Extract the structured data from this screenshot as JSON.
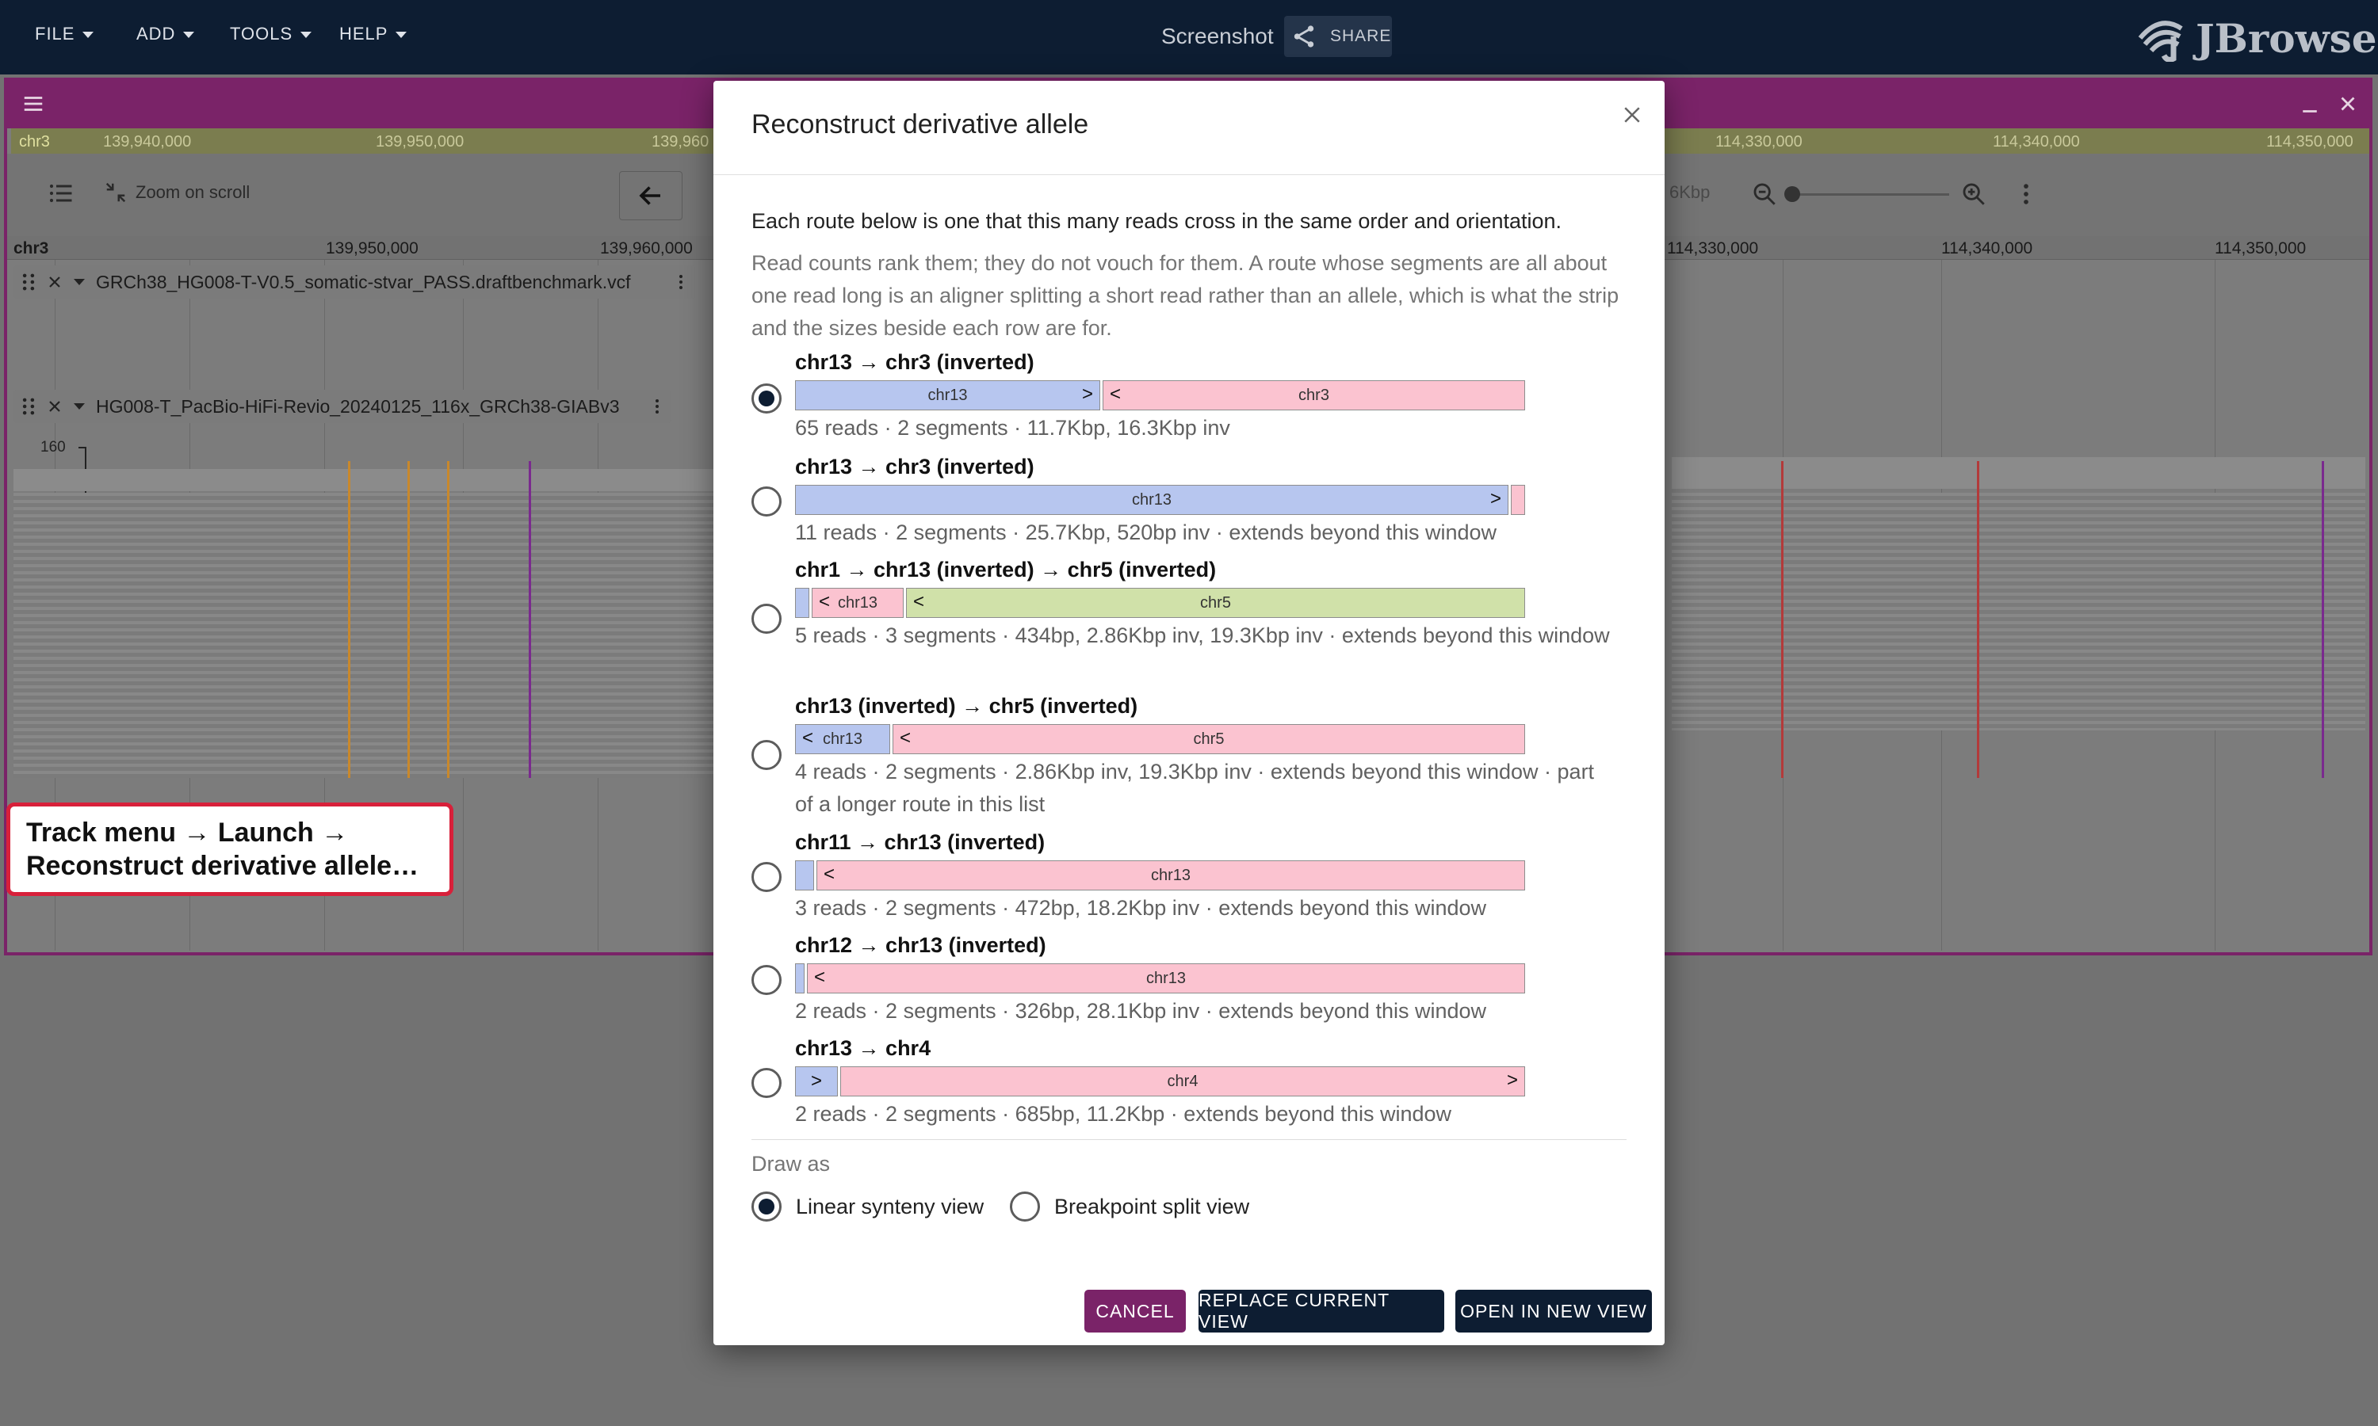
{
  "menu": {
    "file": "FILE",
    "add": "ADD",
    "tools": "TOOLS",
    "help": "HELP"
  },
  "header": {
    "screenshot_label": "Screenshot",
    "share_label": "SHARE",
    "brand": "JBrowse"
  },
  "view": {
    "ruler_ref": "chr3",
    "ruler_ticks_left": [
      "139,940,000",
      "139,950,000",
      "139,960"
    ],
    "ruler_ticks_right": [
      "114,330,000",
      "114,340,000",
      "114,350,000"
    ],
    "zoom_on_scroll": "Zoom on scroll",
    "width_label": "6Kbp",
    "scale_ref": "chr3",
    "scale_ticks_left": [
      "139,950,000",
      "139,960,000"
    ],
    "scale_ticks_right": [
      "114,330,000",
      "114,340,000",
      "114,350,000"
    ],
    "track1_name": "GRCh38_HG008-T-V0.5_somatic-stvar_PASS.draftbenchmark.vcf",
    "track2_name": "HG008-T_PacBio-HiFi-Revio_20240125_116x_GRCh38-GIABv3",
    "coverage_max": "160",
    "coverage_min": "0"
  },
  "callout": {
    "line1": "Track menu → Launch →",
    "line2": "Reconstruct derivative allele…"
  },
  "dialog": {
    "title": "Reconstruct derivative allele",
    "intro_primary": "Each route below is one that this many reads cross in the same order and orientation.",
    "intro_secondary": "Read counts rank them; they do not vouch for them. A route whose segments are all about one read long is an aligner splitting a short read rather than an allele, which is what the strip and the sizes beside each row are for.",
    "routes": [
      {
        "title": "chr13 → chr3 (inverted)",
        "stats": "65 reads · 2 segments · 11.7Kbp, 16.3Kbp inv",
        "selected": true,
        "segments": [
          {
            "label": "chr13",
            "color": "#b7c6ef",
            "arrow_right": ">"
          },
          {
            "label": "chr3",
            "color": "#fbc3d0",
            "arrow_left": "<"
          }
        ]
      },
      {
        "title": "chr13 → chr3 (inverted)",
        "stats": "11 reads · 2 segments · 25.7Kbp, 520bp inv · extends beyond this window",
        "selected": false,
        "segments": [
          {
            "label": "chr13",
            "color": "#b7c6ef",
            "arrow_right": ">"
          },
          {
            "label": "",
            "color": "#fbc3d0"
          }
        ]
      },
      {
        "title": "chr1 → chr13 (inverted) → chr5 (inverted)",
        "stats": "5 reads · 3 segments · 434bp, 2.86Kbp inv, 19.3Kbp inv · extends beyond this window",
        "selected": false,
        "segments": [
          {
            "label": "",
            "color": "#b7c6ef"
          },
          {
            "label": "chr13",
            "color": "#fbc3d0",
            "arrow_left": "<"
          },
          {
            "label": "chr5",
            "color": "#d0e1a9",
            "arrow_left": "<"
          }
        ]
      },
      {
        "title": "chr13 (inverted) → chr5 (inverted)",
        "stats": "4 reads · 2 segments · 2.86Kbp inv, 19.3Kbp inv · extends beyond this window · part of a longer route in this list",
        "selected": false,
        "segments": [
          {
            "label": "chr13",
            "color": "#b7c6ef",
            "arrow_left": "<"
          },
          {
            "label": "chr5",
            "color": "#fbc3d0",
            "arrow_left": "<"
          }
        ]
      },
      {
        "title": "chr11 → chr13 (inverted)",
        "stats": "3 reads · 2 segments · 472bp, 18.2Kbp inv · extends beyond this window",
        "selected": false,
        "segments": [
          {
            "label": "",
            "color": "#b7c6ef"
          },
          {
            "label": "chr13",
            "color": "#fbc3d0",
            "arrow_left": "<"
          }
        ]
      },
      {
        "title": "chr12 → chr13 (inverted)",
        "stats": "2 reads · 2 segments · 326bp, 28.1Kbp inv · extends beyond this window",
        "selected": false,
        "segments": [
          {
            "label": "",
            "color": "#b7c6ef"
          },
          {
            "label": "chr13",
            "color": "#fbc3d0",
            "arrow_left": "<"
          }
        ]
      },
      {
        "title": "chr13 → chr4",
        "stats": "2 reads · 2 segments · 685bp, 11.2Kbp · extends beyond this window",
        "selected": false,
        "segments": [
          {
            "label": "",
            "color": "#b7c6ef",
            "arrow_center": ">"
          },
          {
            "label": "chr4",
            "color": "#fbc3d0",
            "arrow_right": ">"
          }
        ]
      }
    ],
    "draw_as_label": "Draw as",
    "draw_options": [
      {
        "label": "Linear synteny view",
        "selected": true
      },
      {
        "label": "Breakpoint split view",
        "selected": false
      }
    ],
    "buttons": {
      "cancel": "CANCEL",
      "replace": "REPLACE CURRENT VIEW",
      "open_new": "OPEN IN NEW VIEW"
    }
  },
  "colors": {
    "topbar": "#0d1d32",
    "view_border": "#7a2368",
    "primary_button": "#0d1d32",
    "cancel_button": "#7a2368",
    "callout_border": "#d8203a"
  }
}
